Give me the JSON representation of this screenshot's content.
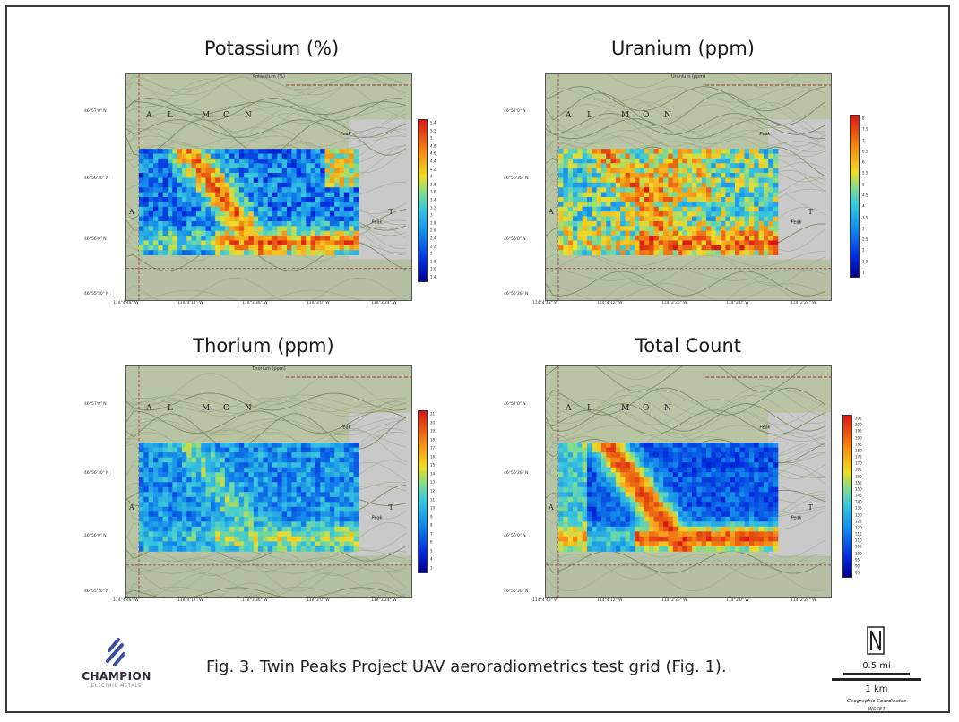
{
  "panels": [
    {
      "key": "potassium",
      "title": "Potassium (%)",
      "map_subtitle": "Potassium (%)",
      "scale_ticks": [
        "5.4",
        "5.2",
        "5",
        "4.8",
        "4.6",
        "4.4",
        "4.2",
        "4",
        "3.8",
        "3.6",
        "3.4",
        "3.2",
        "3",
        "2.8",
        "2.6",
        "2.4",
        "2.2",
        "2",
        "1.8",
        "1.6",
        "1.4"
      ]
    },
    {
      "key": "uranium",
      "title": "Uranium (ppm)",
      "map_subtitle": "Uranium (ppm)",
      "scale_ticks": [
        "8",
        "7.5",
        "7",
        "6.5",
        "6",
        "5.5",
        "5",
        "4.5",
        "4",
        "3.5",
        "3",
        "2.5",
        "2",
        "1.5",
        "1"
      ]
    },
    {
      "key": "thorium",
      "title": "Thorium (ppm)",
      "map_subtitle": "Thorium (ppm)",
      "scale_ticks": [
        "21",
        "20",
        "19",
        "18",
        "17",
        "16",
        "15",
        "14",
        "13",
        "12",
        "11",
        "10",
        "9",
        "8",
        "7",
        "6",
        "5",
        "4",
        "3"
      ]
    },
    {
      "key": "total",
      "title": "Total Count",
      "map_subtitle": "",
      "scale_ticks": [
        "205",
        "200",
        "195",
        "190",
        "185",
        "180",
        "175",
        "170",
        "165",
        "160",
        "155",
        "150",
        "145",
        "140",
        "135",
        "130",
        "125",
        "120",
        "115",
        "110",
        "105",
        "100",
        "95",
        "90",
        "85"
      ]
    }
  ],
  "map_labels": {
    "place_letters": [
      "A",
      "L",
      "M",
      "O",
      "N"
    ],
    "side_letter_left": "A",
    "side_letter_right": "T",
    "peak_label": "Peak",
    "peak_label2": "Peak"
  },
  "lat_labels": [
    "46°57'0\" N",
    "46°56'30\" N",
    "46°56'0\" N",
    "46°55'30\" N"
  ],
  "lon_labels": [
    "114°4'48\" W",
    "114°4'12\" W",
    "114°3'36\" W",
    "114°3'0\" W",
    "114°2'24\" W"
  ],
  "caption": "Fig. 3.  Twin Peaks Project UAV aeroradiometrics test grid (Fig. 1).",
  "logo": {
    "name": "CHAMPION",
    "tagline": "ELECTRIC METALS"
  },
  "scale": {
    "mi": "0.5 mi",
    "km": "1 km",
    "coords": "Geographic Coordinates",
    "datum": "WGS84"
  },
  "colors": {
    "accent_red": "#e8231c",
    "accent_blue": "#1a2a9a",
    "logo_mark": "#3b4fa0"
  }
}
